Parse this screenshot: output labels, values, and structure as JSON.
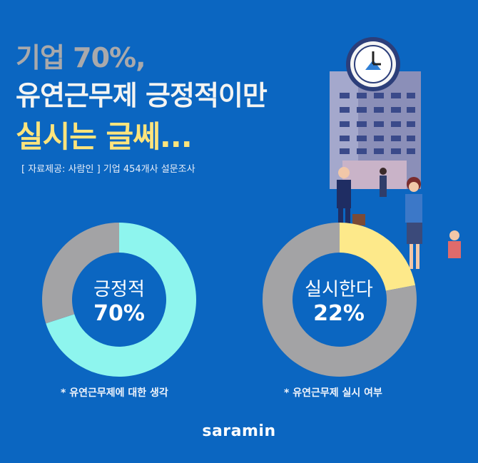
{
  "headline": {
    "line1": "기업 70%,",
    "line2": "유연근무제 긍정적이만",
    "line3": "실시는 글쎄...",
    "source": "[ 자료제공: 사람인 ] 기업 454개사 설문조사"
  },
  "colors": {
    "background": "#0b66c1",
    "cyan": "#8ef5ee",
    "gray": "#a3a3a5",
    "yellow": "#fde98a"
  },
  "chart_data": [
    {
      "type": "pie",
      "center_label": "긍정적",
      "center_value": "70%",
      "caption": "* 유연근무제에 대한 생각",
      "slices": [
        {
          "label": "긍정적",
          "value": 70,
          "color": "#8ef5ee"
        },
        {
          "value": 30,
          "color": "#a3a3a5"
        }
      ]
    },
    {
      "type": "pie",
      "center_label": "실시한다",
      "center_value": "22%",
      "caption": "* 유연근무제 실시 여부",
      "slices": [
        {
          "label": "실시한다",
          "value": 22,
          "color": "#fde98a"
        },
        {
          "value": 78,
          "color": "#a3a3a5"
        }
      ]
    }
  ],
  "brand": "saramin"
}
